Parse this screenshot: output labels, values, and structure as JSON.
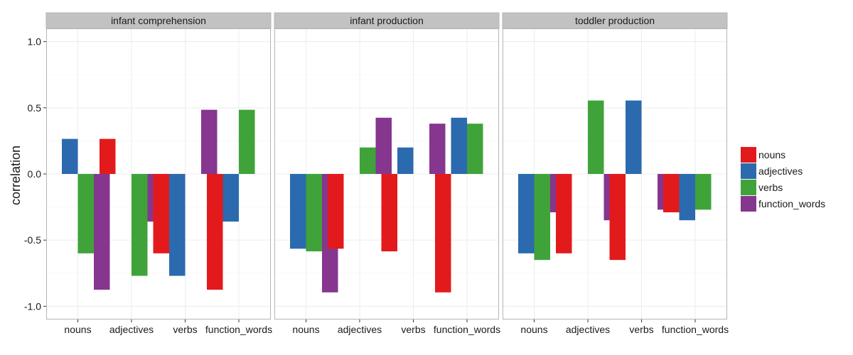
{
  "chart_data": {
    "type": "bar",
    "facet_titles": [
      "infant comprehension",
      "infant production",
      "toddler production"
    ],
    "categories": [
      "nouns",
      "adjectives",
      "verbs",
      "function_words"
    ],
    "ylabel": "correlation",
    "xlabel": "",
    "ylim": [
      -1.1,
      1.1
    ],
    "yticks": [
      -1.0,
      -0.5,
      0.0,
      0.5,
      1.0
    ],
    "ytick_labels": [
      "-1.0",
      "-0.5",
      "0.0",
      "0.5",
      "1.0"
    ],
    "legend_position": "right",
    "series_names": [
      "nouns",
      "adjectives",
      "verbs",
      "function_words"
    ],
    "colors": {
      "nouns": "#e31a1c",
      "adjectives": "#2b6aae",
      "verbs": "#3fa33a",
      "function_words": "#86368f",
      "strip_bg": "#c2c2c2",
      "grid": "#ececec",
      "panel_border": "#b5b5b5"
    },
    "facets": [
      {
        "title": "infant comprehension",
        "values": {
          "nouns": [
            null,
            0.265,
            -0.6,
            -0.875
          ],
          "adjectives": [
            0.265,
            null,
            -0.77,
            -0.36
          ],
          "verbs": [
            -0.6,
            -0.77,
            null,
            0.485
          ],
          "function_words": [
            -0.875,
            -0.36,
            0.485,
            null
          ]
        }
      },
      {
        "title": "infant production",
        "values": {
          "nouns": [
            null,
            -0.565,
            -0.585,
            -0.895
          ],
          "adjectives": [
            -0.565,
            null,
            0.2,
            0.425
          ],
          "verbs": [
            -0.585,
            0.2,
            null,
            0.38
          ],
          "function_words": [
            -0.895,
            0.425,
            0.38,
            null
          ]
        }
      },
      {
        "title": "toddler production",
        "values": {
          "nouns": [
            null,
            -0.6,
            -0.65,
            -0.29
          ],
          "adjectives": [
            -0.6,
            null,
            0.555,
            -0.35
          ],
          "verbs": [
            -0.65,
            0.555,
            null,
            -0.27
          ],
          "function_words": [
            -0.29,
            -0.35,
            -0.27,
            null
          ]
        }
      }
    ]
  }
}
